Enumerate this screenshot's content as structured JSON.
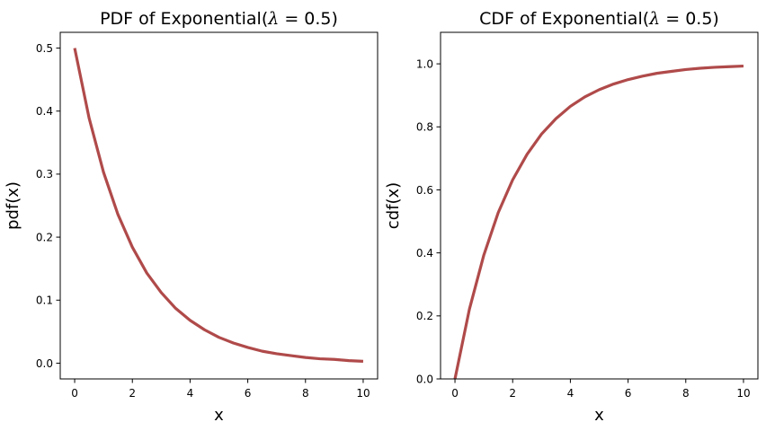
{
  "chart_data": [
    {
      "type": "line",
      "title": "PDF of Exponential(λ = 0.5)",
      "title_prefix": "PDF of Exponential(",
      "title_lambda": "λ",
      "title_suffix": " = 0.5)",
      "xlabel": "x",
      "ylabel": "pdf(x)",
      "xlim": [
        -0.5,
        10.5
      ],
      "ylim": [
        -0.025,
        0.525
      ],
      "xticks": [
        0,
        2,
        4,
        6,
        8,
        10
      ],
      "xtick_labels": [
        "0",
        "2",
        "4",
        "6",
        "8",
        "10"
      ],
      "yticks": [
        0.0,
        0.1,
        0.2,
        0.3,
        0.4,
        0.5
      ],
      "ytick_labels": [
        "0.0",
        "0.1",
        "0.2",
        "0.3",
        "0.4",
        "0.5"
      ],
      "grid": false,
      "series": [
        {
          "color": "#b04a4a",
          "x": [
            0,
            0.5,
            1,
            1.5,
            2,
            2.5,
            3,
            3.5,
            4,
            4.5,
            5,
            5.5,
            6,
            6.5,
            7,
            7.5,
            8,
            8.5,
            9,
            9.5,
            10
          ],
          "values": [
            0.5,
            0.389,
            0.303,
            0.236,
            0.184,
            0.143,
            0.112,
            0.087,
            0.068,
            0.053,
            0.041,
            0.032,
            0.025,
            0.019,
            0.015,
            0.012,
            0.009,
            0.007,
            0.006,
            0.004,
            0.003
          ]
        }
      ]
    },
    {
      "type": "line",
      "title": "CDF of Exponential(λ = 0.5)",
      "title_prefix": "CDF of Exponential(",
      "title_lambda": "λ",
      "title_suffix": " = 0.5)",
      "xlabel": "x",
      "ylabel": "cdf(x)",
      "xlim": [
        -0.5,
        10.5
      ],
      "ylim": [
        0,
        1.1
      ],
      "xticks": [
        0,
        2,
        4,
        6,
        8,
        10
      ],
      "xtick_labels": [
        "0",
        "2",
        "4",
        "6",
        "8",
        "10"
      ],
      "yticks": [
        0.0,
        0.2,
        0.4,
        0.6,
        0.8,
        1.0
      ],
      "ytick_labels": [
        "0.0",
        "0.2",
        "0.4",
        "0.6",
        "0.8",
        "1.0"
      ],
      "grid": false,
      "series": [
        {
          "color": "#b04a4a",
          "x": [
            0,
            0.5,
            1,
            1.5,
            2,
            2.5,
            3,
            3.5,
            4,
            4.5,
            5,
            5.5,
            6,
            6.5,
            7,
            7.5,
            8,
            8.5,
            9,
            9.5,
            10
          ],
          "values": [
            0.0,
            0.221,
            0.393,
            0.528,
            0.632,
            0.713,
            0.777,
            0.826,
            0.865,
            0.895,
            0.918,
            0.936,
            0.95,
            0.961,
            0.97,
            0.976,
            0.982,
            0.986,
            0.989,
            0.991,
            0.993
          ]
        }
      ]
    }
  ]
}
